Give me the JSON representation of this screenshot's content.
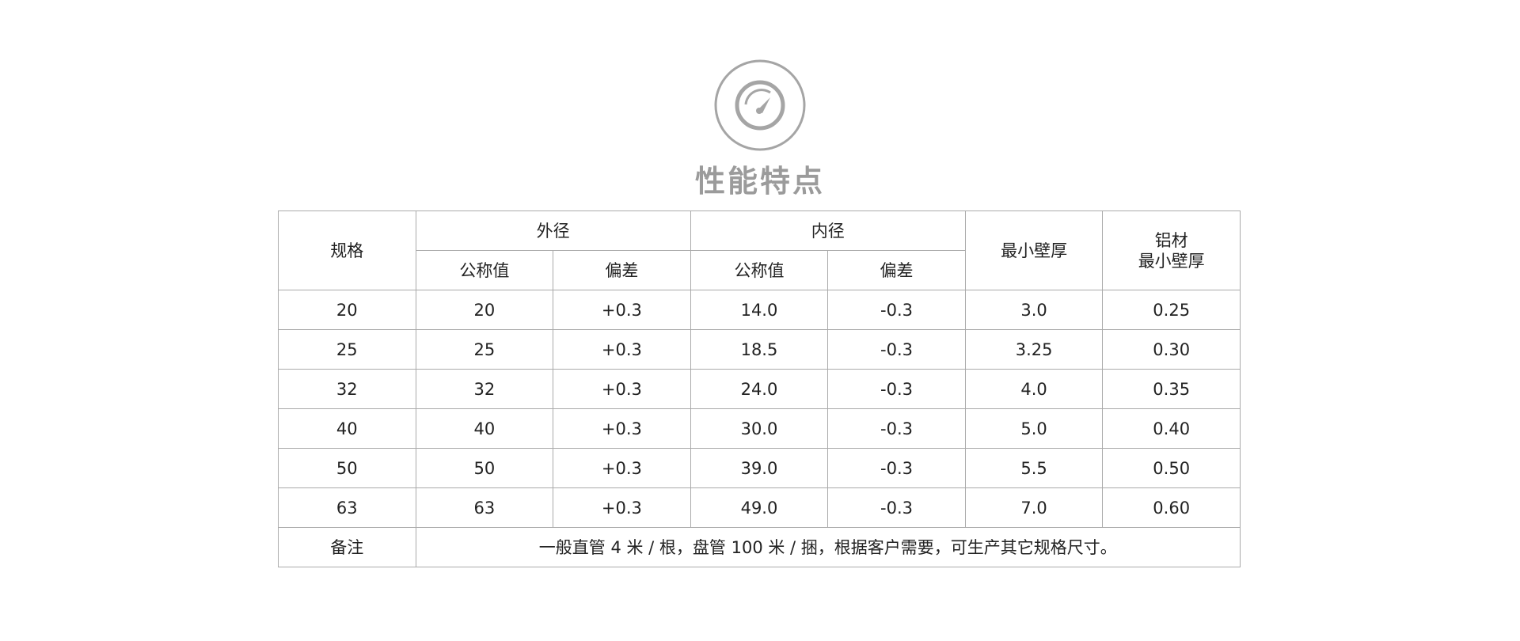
{
  "header": {
    "icon": "speedometer-icon",
    "title": "性能特点"
  },
  "table": {
    "headers": {
      "spec": "规格",
      "outer": "外径",
      "inner": "内径",
      "min_wall": "最小壁厚",
      "al_line1": "铝材",
      "al_line2": "最小壁厚",
      "nominal": "公称值",
      "deviation": "偏差"
    },
    "rows": [
      [
        "20",
        "20",
        "+0.3",
        "14.0",
        "-0.3",
        "3.0",
        "0.25"
      ],
      [
        "25",
        "25",
        "+0.3",
        "18.5",
        "-0.3",
        "3.25",
        "0.30"
      ],
      [
        "32",
        "32",
        "+0.3",
        "24.0",
        "-0.3",
        "4.0",
        "0.35"
      ],
      [
        "40",
        "40",
        "+0.3",
        "30.0",
        "-0.3",
        "5.0",
        "0.40"
      ],
      [
        "50",
        "50",
        "+0.3",
        "39.0",
        "-0.3",
        "5.5",
        "0.50"
      ],
      [
        "63",
        "63",
        "+0.3",
        "49.0",
        "-0.3",
        "7.0",
        "0.60"
      ]
    ],
    "note_label": "备注",
    "note_text": "一般直管 4 米 / 根，盘管 100 米 / 捆，根据客户需要，可生产其它规格尺寸。"
  }
}
